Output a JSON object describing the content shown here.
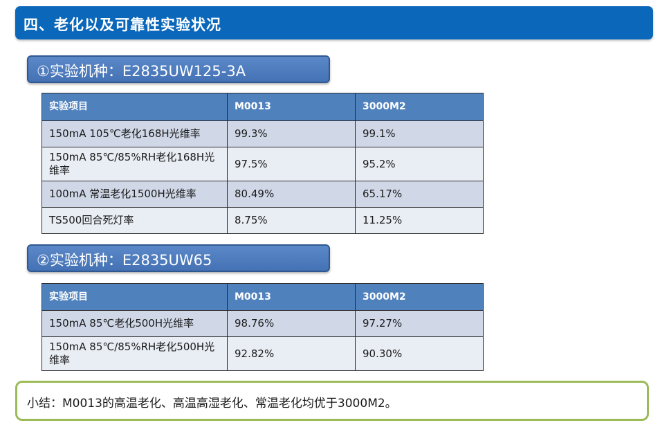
{
  "slide": {
    "title": "四、老化以及可靠性实验状况"
  },
  "section1": {
    "header": "①实验机种：E2835UW125-3A",
    "columns": [
      "实验项目",
      "M0013",
      "3000M2"
    ],
    "rows": [
      [
        "150mA 105℃老化168H光维率",
        "99.3%",
        "99.1%"
      ],
      [
        "150mA 85℃/85%RH老化168H光维率",
        "97.5%",
        "95.2%"
      ],
      [
        "100mA 常温老化1500H光维率",
        "80.49%",
        "65.17%"
      ],
      [
        "TS500回合死灯率",
        "8.75%",
        "11.25%"
      ]
    ]
  },
  "section2": {
    "header": "②实验机种：E2835UW65",
    "columns": [
      "实验项目",
      "M0013",
      "3000M2"
    ],
    "rows": [
      [
        "150mA 85℃老化500H光维率",
        "98.76%",
        "97.27%"
      ],
      [
        "150mA 85℃/85%RH老化500H光维率",
        "92.82%",
        "90.30%"
      ]
    ]
  },
  "summary": {
    "text": "小结：M0013的高温老化、高温高湿老化、常温老化均优于3000M2。"
  },
  "colors": {
    "title_bar": "#0a67b9",
    "section_header": "#4f7dc0",
    "table_header": "#4f81bd",
    "row_odd": "#d0d8e8",
    "row_even": "#e9edf4",
    "summary_border": "#9bbb59"
  }
}
